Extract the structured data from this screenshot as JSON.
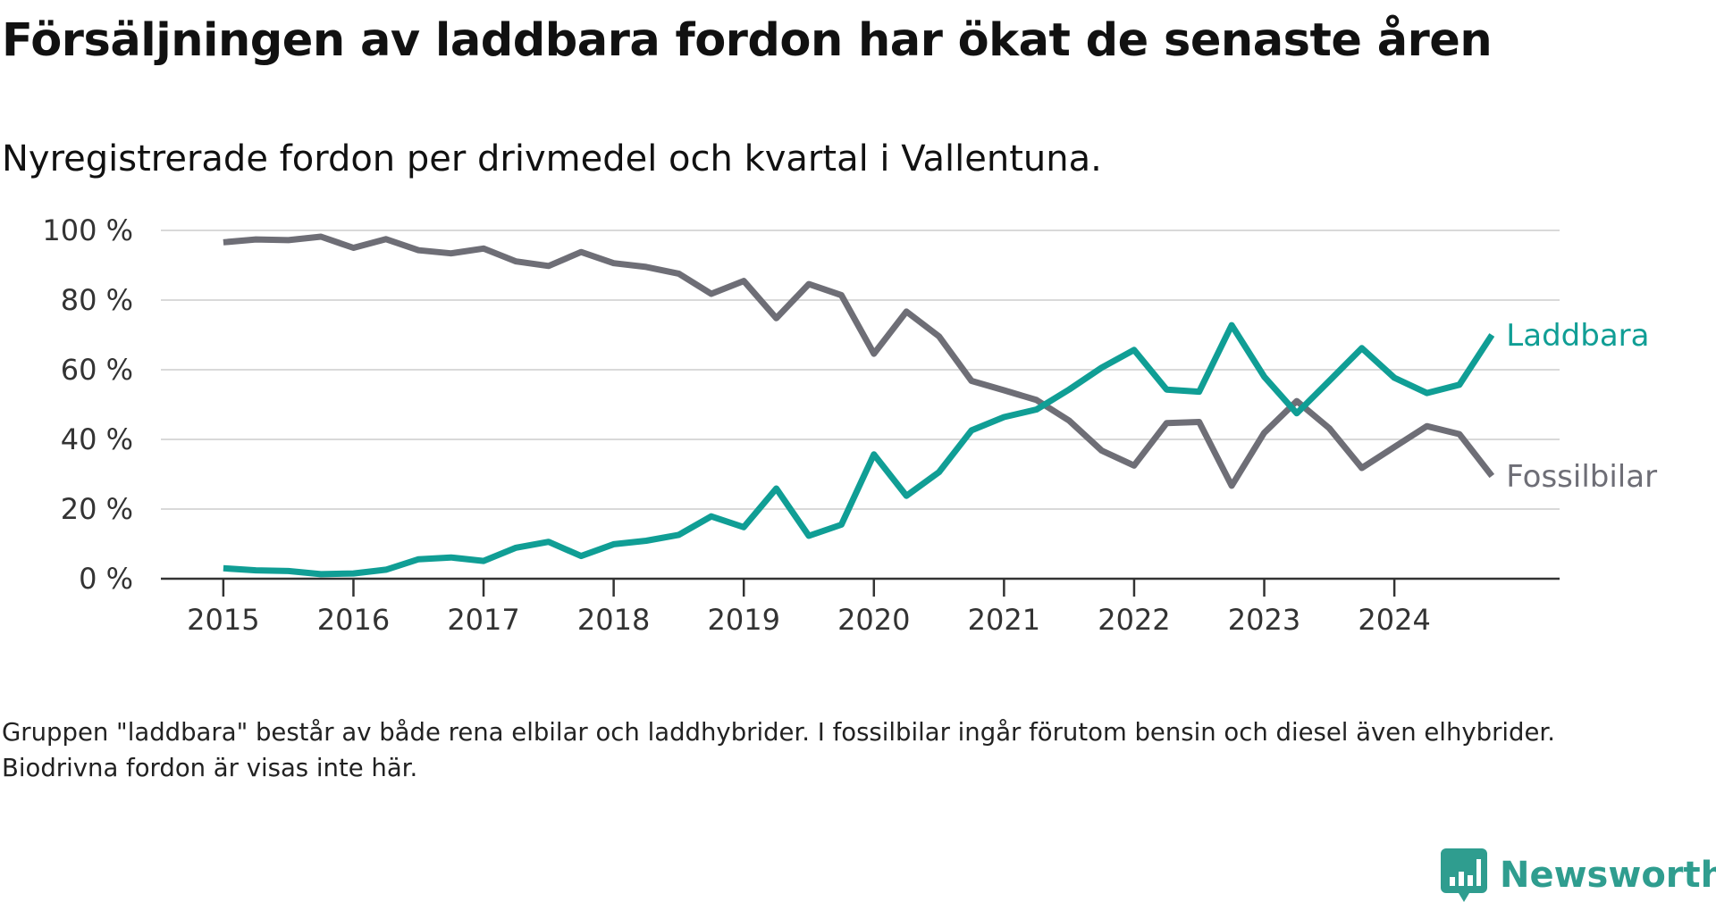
{
  "title": "Försäljningen av laddbara fordon har ökat de senaste åren",
  "subtitle": "Nyregistrerade fordon per drivmedel och kvartal i Vallentuna.",
  "footnote": "Gruppen \"laddbara\" består av både rena elbilar och laddhybrider. I fossilbilar ingår förutom bensin och diesel även elhybrider. Biodrivna fordon är visas inte här.",
  "brand": {
    "name": "Newsworthy",
    "icon": "bar-chart-icon",
    "color": "#2f9d8f"
  },
  "chart_data": {
    "type": "line",
    "title": "Försäljningen av laddbara fordon har ökat de senaste åren",
    "subtitle": "Nyregistrerade fordon per drivmedel och kvartal i Vallentuna.",
    "xlabel": "",
    "ylabel": "",
    "x_start": 2015.0,
    "x_step": 0.25,
    "xlim": [
      2014.52,
      2025.27
    ],
    "ylim": [
      0,
      100
    ],
    "x_ticks": [
      2015,
      2016,
      2017,
      2018,
      2019,
      2020,
      2021,
      2022,
      2023,
      2024
    ],
    "x_tick_labels": [
      "2015",
      "2016",
      "2017",
      "2018",
      "2019",
      "2020",
      "2021",
      "2022",
      "2023",
      "2024"
    ],
    "y_ticks": [
      0,
      20,
      40,
      60,
      80,
      100
    ],
    "y_tick_labels": [
      "0 %",
      "20 %",
      "40 %",
      "60 %",
      "80 %",
      "100 %"
    ],
    "grid": true,
    "legend": "direct labels at line ends",
    "series": [
      {
        "name": "Laddbara",
        "color": "#109e95",
        "values": [
          3.0,
          2.4,
          2.2,
          1.3,
          1.5,
          2.6,
          5.6,
          6.1,
          5.1,
          8.9,
          10.6,
          6.5,
          9.9,
          10.9,
          12.6,
          17.9,
          14.8,
          25.9,
          12.3,
          15.5,
          35.7,
          23.8,
          30.6,
          42.6,
          46.4,
          48.6,
          54.3,
          60.6,
          65.7,
          54.3,
          53.7,
          72.8,
          58.0,
          47.5,
          56.8,
          66.2,
          57.7,
          53.3,
          55.7,
          70.0
        ]
      },
      {
        "name": "Fossilbilar",
        "color": "#6e6e76",
        "values": [
          96.6,
          97.4,
          97.2,
          98.2,
          95.0,
          97.5,
          94.3,
          93.4,
          94.8,
          91.1,
          89.8,
          93.8,
          90.6,
          89.5,
          87.6,
          81.8,
          85.5,
          74.8,
          84.6,
          81.4,
          64.6,
          76.7,
          69.6,
          56.8,
          54.1,
          51.3,
          45.4,
          36.8,
          32.5,
          44.7,
          45.0,
          26.7,
          41.9,
          51.0,
          43.2,
          31.8,
          37.8,
          43.8,
          41.5,
          29.5
        ]
      }
    ]
  }
}
